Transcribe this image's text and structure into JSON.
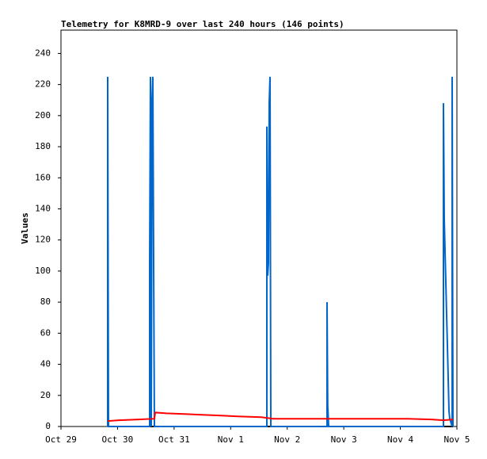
{
  "chart_data": {
    "type": "line",
    "title": "Telemetry for K8MRD-9 over last 240 hours (146 points)",
    "y_label": "Values",
    "xlim": [
      0,
      7
    ],
    "ylim": [
      0,
      255
    ],
    "xticks": [
      {
        "value": 0,
        "label": "Oct 29"
      },
      {
        "value": 1,
        "label": "Oct 30"
      },
      {
        "value": 2,
        "label": "Oct 31"
      },
      {
        "value": 3,
        "label": "Nov 1"
      },
      {
        "value": 4,
        "label": "Nov 2"
      },
      {
        "value": 5,
        "label": "Nov 3"
      },
      {
        "value": 6,
        "label": "Nov 4"
      },
      {
        "value": 7,
        "label": "Nov 5"
      }
    ],
    "yticks": [
      0,
      20,
      40,
      60,
      80,
      100,
      120,
      140,
      160,
      180,
      200,
      220,
      240
    ],
    "grid": false,
    "series": [
      {
        "color": "#000000",
        "x": [
          0.826,
          6.93
        ],
        "values": [
          0,
          0
        ]
      },
      {
        "color": "#0066cc",
        "x": [
          0.826,
          0.826,
          0.84,
          1.568,
          1.568,
          1.582,
          1.596,
          1.61,
          1.624,
          1.638,
          1.652,
          3.64,
          3.64,
          3.654,
          3.668,
          3.682,
          3.696,
          3.71,
          4.704,
          4.704,
          4.718,
          4.718,
          4.732,
          6.762,
          6.762,
          6.776,
          6.79,
          6.804,
          6.818,
          6.832,
          6.846,
          6.86,
          6.874,
          6.916,
          6.916,
          6.93
        ],
        "values": [
          0,
          225,
          0,
          0,
          105,
          225,
          0,
          210,
          225,
          105,
          0,
          0,
          193,
          97,
          105,
          208,
          225,
          0,
          0,
          80,
          0,
          12,
          0,
          0,
          208,
          134,
          113,
          93,
          72,
          52,
          31,
          10,
          5,
          0,
          225,
          0
        ]
      },
      {
        "color": "#ff0000",
        "x": [
          0.826,
          1.022,
          1.372,
          1.652,
          1.666,
          1.862,
          2.226,
          2.492,
          2.842,
          3.122,
          3.542,
          3.752,
          6.132,
          6.552,
          6.762,
          6.93
        ],
        "values": [
          3.5,
          4,
          4.5,
          5,
          9,
          8.5,
          8,
          7.5,
          7,
          6.5,
          6,
          5,
          5,
          4.5,
          4,
          4.5
        ]
      }
    ]
  }
}
